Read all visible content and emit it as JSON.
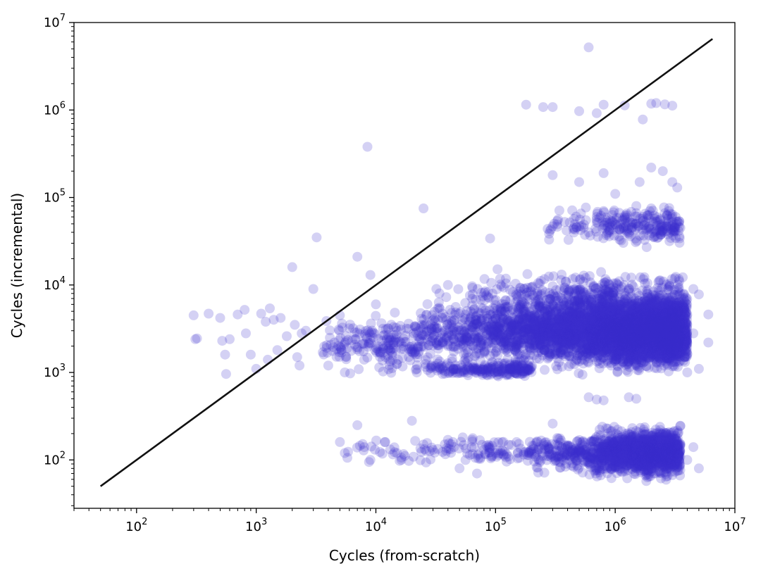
{
  "chart_data": {
    "type": "scatter",
    "title": "",
    "xlabel": "Cycles (from-scratch)",
    "ylabel": "Cycles (incremental)",
    "xscale": "log",
    "yscale": "log",
    "xlim": [
      30,
      10000000
    ],
    "ylim": [
      28,
      10000000
    ],
    "x_ticks": [
      {
        "value": 100,
        "mantissa": "10",
        "exp": "2"
      },
      {
        "value": 1000,
        "mantissa": "10",
        "exp": "3"
      },
      {
        "value": 10000,
        "mantissa": "10",
        "exp": "4"
      },
      {
        "value": 100000,
        "mantissa": "10",
        "exp": "5"
      },
      {
        "value": 1000000,
        "mantissa": "10",
        "exp": "6"
      },
      {
        "value": 10000000,
        "mantissa": "10",
        "exp": "7"
      }
    ],
    "y_ticks": [
      {
        "value": 100,
        "mantissa": "10",
        "exp": "2"
      },
      {
        "value": 1000,
        "mantissa": "10",
        "exp": "3"
      },
      {
        "value": 10000,
        "mantissa": "10",
        "exp": "4"
      },
      {
        "value": 100000,
        "mantissa": "10",
        "exp": "5"
      },
      {
        "value": 1000000,
        "mantissa": "10",
        "exp": "6"
      },
      {
        "value": 10000000,
        "mantissa": "10",
        "exp": "7"
      }
    ],
    "grid": false,
    "legend": "none",
    "colors": {
      "points": "#3a2ccc",
      "reference_line": "#111111"
    },
    "reference_line": {
      "x": [
        50,
        6500000
      ],
      "y": [
        50,
        6500000
      ]
    },
    "series": [
      {
        "points": [
          [
            300,
            4500
          ],
          [
            310,
            2400
          ],
          [
            320,
            2450
          ],
          [
            400,
            4700
          ],
          [
            500,
            4200
          ],
          [
            520,
            2300
          ],
          [
            550,
            1600
          ],
          [
            560,
            960
          ],
          [
            600,
            2400
          ],
          [
            700,
            4600
          ],
          [
            800,
            5200
          ],
          [
            820,
            2800
          ],
          [
            900,
            1600
          ],
          [
            1000,
            1100
          ],
          [
            1100,
            4700
          ],
          [
            1200,
            3800
          ],
          [
            1250,
            1400
          ],
          [
            1300,
            5400
          ],
          [
            1400,
            4000
          ],
          [
            1500,
            1800
          ],
          [
            1600,
            4200
          ],
          [
            1800,
            2600
          ],
          [
            2000,
            16000
          ],
          [
            2100,
            3500
          ],
          [
            2200,
            1500
          ],
          [
            2300,
            1200
          ],
          [
            2400,
            2800
          ],
          [
            2600,
            3000
          ],
          [
            3000,
            9000
          ],
          [
            3200,
            35000
          ],
          [
            3600,
            1700
          ],
          [
            4000,
            1200
          ],
          [
            4500,
            2200
          ],
          [
            5000,
            4500
          ],
          [
            5500,
            1000
          ],
          [
            6000,
            3200
          ],
          [
            7000,
            21000
          ],
          [
            8500,
            380000
          ],
          [
            9000,
            13000
          ],
          [
            9500,
            2500
          ],
          [
            10000,
            6000
          ],
          [
            12000,
            1500
          ],
          [
            15000,
            3000
          ],
          [
            20000,
            2000
          ],
          [
            25000,
            75000
          ],
          [
            30000,
            2500
          ],
          [
            40000,
            10000
          ],
          [
            40000,
            2000
          ],
          [
            60000,
            2800
          ],
          [
            90000,
            34000
          ],
          [
            150000,
            1900
          ],
          [
            250000,
            2600
          ],
          [
            600000,
            5200000
          ],
          [
            180000,
            1150000
          ],
          [
            250000,
            1080000
          ],
          [
            300000,
            1080000
          ],
          [
            500000,
            970000
          ],
          [
            700000,
            920000
          ],
          [
            800000,
            1150000
          ],
          [
            1200000,
            1130000
          ],
          [
            1700000,
            780000
          ],
          [
            2000000,
            1180000
          ],
          [
            2200000,
            1200000
          ],
          [
            2600000,
            1160000
          ],
          [
            3000000,
            1120000
          ],
          [
            300000,
            180000
          ],
          [
            500000,
            150000
          ],
          [
            800000,
            190000
          ],
          [
            1000000,
            110000
          ],
          [
            1600000,
            150000
          ],
          [
            2000000,
            220000
          ],
          [
            2500000,
            200000
          ],
          [
            3000000,
            150000
          ],
          [
            3300000,
            130000
          ],
          [
            280000,
            33000
          ],
          [
            450000,
            45000
          ],
          [
            600000,
            40000
          ],
          [
            700000,
            60000
          ],
          [
            800000,
            70000
          ],
          [
            900000,
            50000
          ],
          [
            1200000,
            60000
          ],
          [
            1500000,
            80000
          ],
          [
            2000000,
            75000
          ],
          [
            2800000,
            70000
          ],
          [
            3200000,
            60000
          ],
          [
            3500000,
            45000
          ],
          [
            600000,
            520
          ],
          [
            700000,
            490
          ],
          [
            800000,
            480
          ],
          [
            1300000,
            520
          ],
          [
            1500000,
            500
          ],
          [
            3500000,
            4500
          ],
          [
            4000000,
            3500
          ],
          [
            4500000,
            2800
          ],
          [
            5000000,
            7800
          ],
          [
            6000000,
            4600
          ],
          [
            6000000,
            2200
          ],
          [
            5000000,
            1100
          ],
          [
            4500000,
            9000
          ],
          [
            4000000,
            100
          ],
          [
            5000000,
            80
          ],
          [
            4500000,
            140
          ],
          [
            4000000,
            1000
          ],
          [
            5000,
            160
          ],
          [
            5500,
            120
          ],
          [
            7000,
            250
          ],
          [
            8000,
            140
          ],
          [
            9000,
            100
          ],
          [
            12000,
            160
          ],
          [
            15000,
            120
          ],
          [
            20000,
            280
          ],
          [
            25000,
            150
          ],
          [
            30000,
            130
          ],
          [
            40000,
            170
          ],
          [
            50000,
            80
          ],
          [
            70000,
            70
          ],
          [
            100000,
            120
          ],
          [
            150000,
            160
          ],
          [
            200000,
            130
          ],
          [
            300000,
            260
          ]
        ],
        "clusters": [
          {
            "x_range": [
              20000,
              4000000
            ],
            "y_range": [
              1000,
              8000
            ],
            "count": 2200
          },
          {
            "x_range": [
              200000,
              4000000
            ],
            "y_range": [
              800,
              16000
            ],
            "count": 1500
          },
          {
            "x_range": [
              3000,
              25000
            ],
            "y_range": [
              800,
              6000
            ],
            "count": 200
          },
          {
            "x_range": [
              20000,
              200000
            ],
            "y_range": [
              850,
              1400
            ],
            "count": 220
          },
          {
            "x_range": [
              600000,
              3500000
            ],
            "y_range": [
              1000,
              8000
            ],
            "count": 1500
          },
          {
            "x_range": [
              30000,
              1000000
            ],
            "y_range": [
              3000,
              16000
            ],
            "count": 250
          },
          {
            "x_range": [
              200000,
              3500000
            ],
            "y_range": [
              55,
              250
            ],
            "count": 500
          },
          {
            "x_range": [
              580000,
              3500000
            ],
            "y_range": [
              55,
              280
            ],
            "count": 900
          },
          {
            "x_range": [
              5000,
              580000
            ],
            "y_range": [
              80,
              200
            ],
            "count": 200
          },
          {
            "x_range": [
              250000,
              3500000
            ],
            "y_range": [
              25000,
              90000
            ],
            "count": 250
          }
        ]
      }
    ]
  }
}
